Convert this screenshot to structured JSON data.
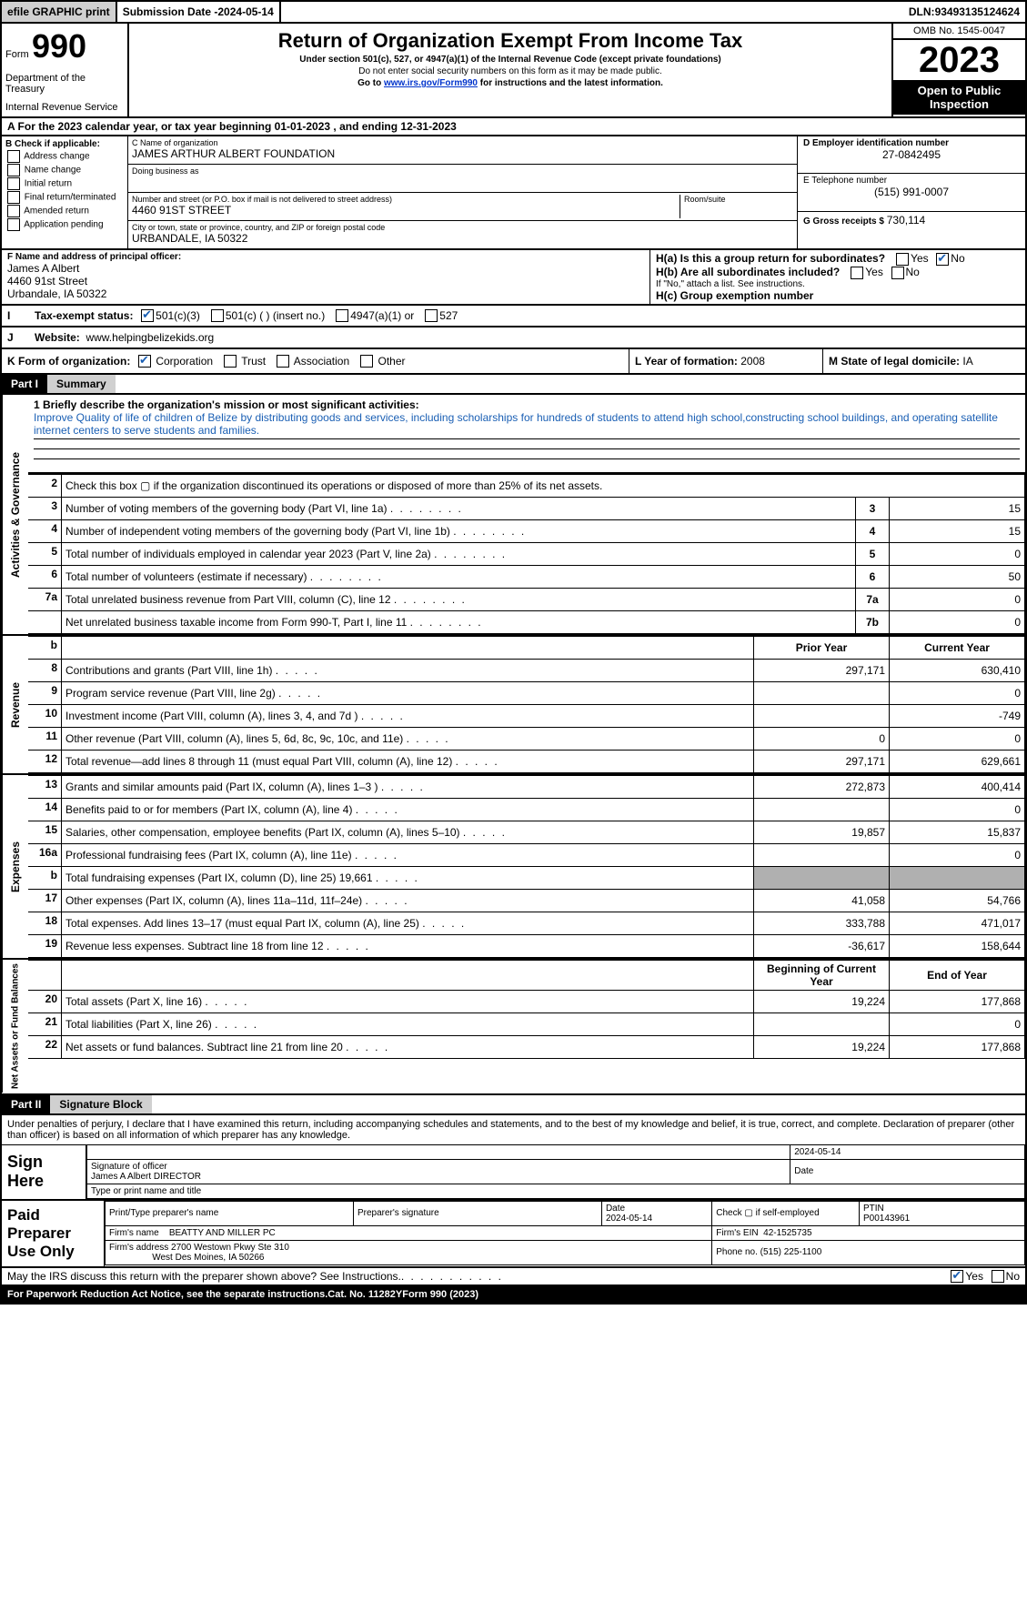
{
  "topbar": {
    "efile": "efile GRAPHIC print",
    "submission_label": "Submission Date - ",
    "submission_date": "2024-05-14",
    "dln_label": "DLN: ",
    "dln": "93493135124624"
  },
  "header": {
    "form_word": "Form",
    "form_number": "990",
    "dept": "Department of the Treasury",
    "irs": "Internal Revenue Service",
    "title": "Return of Organization Exempt From Income Tax",
    "subtitle": "Under section 501(c), 527, or 4947(a)(1) of the Internal Revenue Code (except private foundations)",
    "note1": "Do not enter social security numbers on this form as it may be made public.",
    "note2_prefix": "Go to ",
    "note2_link": "www.irs.gov/Form990",
    "note2_suffix": " for instructions and the latest information.",
    "omb": "OMB No. 1545-0047",
    "year": "2023",
    "inspect1": "Open to Public",
    "inspect2": "Inspection"
  },
  "cy": {
    "label_a": "A For the 2023 calendar year, or tax year beginning ",
    "begin": "01-01-2023",
    "mid": " , and ending ",
    "end": "12-31-2023"
  },
  "entity": {
    "b_label": "B Check if applicable:",
    "b_opts": [
      "Address change",
      "Name change",
      "Initial return",
      "Final return/terminated",
      "Amended return",
      "Application pending"
    ],
    "c_name_lbl": "C Name of organization",
    "c_name": "JAMES ARTHUR ALBERT FOUNDATION",
    "dba_lbl": "Doing business as",
    "street_lbl": "Number and street (or P.O. box if mail is not delivered to street address)",
    "street": "4460 91ST STREET",
    "room_lbl": "Room/suite",
    "city_lbl": "City or town, state or province, country, and ZIP or foreign postal code",
    "city": "URBANDALE, IA  50322",
    "d_lbl": "D Employer identification number",
    "d_val": "27-0842495",
    "e_lbl": "E Telephone number",
    "e_val": "(515) 991-0007",
    "g_lbl": "G Gross receipts $ ",
    "g_val": "730,114"
  },
  "fh": {
    "f_lbl": "F Name and address of principal officer:",
    "f_name": "James A Albert",
    "f_street": "4460 91st Street",
    "f_city": "Urbandale, IA  50322",
    "i_lbl": "Tax-exempt status:",
    "i_501c3": "501(c)(3)",
    "i_501c": "501(c) (  ) (insert no.)",
    "i_4947": "4947(a)(1) or",
    "i_527": "527",
    "j_lbl": "Website:",
    "j_val": "www.helpingbelizekids.org",
    "ha_lbl": "H(a) Is this a group return for subordinates?",
    "hb_lbl": "H(b) Are all subordinates included?",
    "hb_note": "If \"No,\" attach a list. See instructions.",
    "hc_lbl": "H(c) Group exemption number",
    "yes": "Yes",
    "no": "No"
  },
  "klm": {
    "k_lbl": "K Form of organization:",
    "k_opts": [
      "Corporation",
      "Trust",
      "Association",
      "Other"
    ],
    "l_lbl": "L Year of formation: ",
    "l_val": "2008",
    "m_lbl": "M State of legal domicile: ",
    "m_val": "IA"
  },
  "parts": {
    "p1_tag": "Part I",
    "p1_title": "Summary",
    "p2_tag": "Part II",
    "p2_title": "Signature Block"
  },
  "sidetabs": {
    "ag": "Activities & Governance",
    "rev": "Revenue",
    "exp": "Expenses",
    "na": "Net Assets or Fund Balances"
  },
  "mission": {
    "line1_lbl": "1  Briefly describe the organization's mission or most significant activities:",
    "text": "Improve Quality of life of children of Belize by distributing goods and services, including scholarships for hundreds of students to attend high school,constructing school buildings, and operating satellite internet centers to serve students and families."
  },
  "p1_lines_ag": [
    {
      "n": "2",
      "txt": "Check this box ▢ if the organization discontinued its operations or disposed of more than 25% of its net assets.",
      "box": "",
      "val": ""
    },
    {
      "n": "3",
      "txt": "Number of voting members of the governing body (Part VI, line 1a)",
      "box": "3",
      "val": "15"
    },
    {
      "n": "4",
      "txt": "Number of independent voting members of the governing body (Part VI, line 1b)",
      "box": "4",
      "val": "15"
    },
    {
      "n": "5",
      "txt": "Total number of individuals employed in calendar year 2023 (Part V, line 2a)",
      "box": "5",
      "val": "0"
    },
    {
      "n": "6",
      "txt": "Total number of volunteers (estimate if necessary)",
      "box": "6",
      "val": "50"
    },
    {
      "n": "7a",
      "txt": "Total unrelated business revenue from Part VIII, column (C), line 12",
      "box": "7a",
      "val": "0"
    },
    {
      "n": "",
      "txt": "Net unrelated business taxable income from Form 990-T, Part I, line 11",
      "box": "7b",
      "val": "0"
    }
  ],
  "col_hdrs": {
    "prior": "Prior Year",
    "current": "Current Year",
    "beg": "Beginning of Current Year",
    "end": "End of Year"
  },
  "p1_revenue": [
    {
      "n": "b",
      "txt": "",
      "prior": "",
      "cur": "",
      "hdr": true
    },
    {
      "n": "8",
      "txt": "Contributions and grants (Part VIII, line 1h)",
      "prior": "297,171",
      "cur": "630,410"
    },
    {
      "n": "9",
      "txt": "Program service revenue (Part VIII, line 2g)",
      "prior": "",
      "cur": "0"
    },
    {
      "n": "10",
      "txt": "Investment income (Part VIII, column (A), lines 3, 4, and 7d )",
      "prior": "",
      "cur": "-749"
    },
    {
      "n": "11",
      "txt": "Other revenue (Part VIII, column (A), lines 5, 6d, 8c, 9c, 10c, and 11e)",
      "prior": "0",
      "cur": "0"
    },
    {
      "n": "12",
      "txt": "Total revenue—add lines 8 through 11 (must equal Part VIII, column (A), line 12)",
      "prior": "297,171",
      "cur": "629,661"
    }
  ],
  "p1_expenses": [
    {
      "n": "13",
      "txt": "Grants and similar amounts paid (Part IX, column (A), lines 1–3 )",
      "prior": "272,873",
      "cur": "400,414"
    },
    {
      "n": "14",
      "txt": "Benefits paid to or for members (Part IX, column (A), line 4)",
      "prior": "",
      "cur": "0"
    },
    {
      "n": "15",
      "txt": "Salaries, other compensation, employee benefits (Part IX, column (A), lines 5–10)",
      "prior": "19,857",
      "cur": "15,837"
    },
    {
      "n": "16a",
      "txt": "Professional fundraising fees (Part IX, column (A), line 11e)",
      "prior": "",
      "cur": "0"
    },
    {
      "n": "b",
      "txt": "Total fundraising expenses (Part IX, column (D), line 25) 19,661",
      "prior": "SHADE",
      "cur": "SHADE"
    },
    {
      "n": "17",
      "txt": "Other expenses (Part IX, column (A), lines 11a–11d, 11f–24e)",
      "prior": "41,058",
      "cur": "54,766"
    },
    {
      "n": "18",
      "txt": "Total expenses. Add lines 13–17 (must equal Part IX, column (A), line 25)",
      "prior": "333,788",
      "cur": "471,017"
    },
    {
      "n": "19",
      "txt": "Revenue less expenses. Subtract line 18 from line 12",
      "prior": "-36,617",
      "cur": "158,644"
    }
  ],
  "p1_netassets": [
    {
      "n": "",
      "txt": "",
      "prior": "",
      "cur": "",
      "hdr": true
    },
    {
      "n": "20",
      "txt": "Total assets (Part X, line 16)",
      "prior": "19,224",
      "cur": "177,868"
    },
    {
      "n": "21",
      "txt": "Total liabilities (Part X, line 26)",
      "prior": "",
      "cur": "0"
    },
    {
      "n": "22",
      "txt": "Net assets or fund balances. Subtract line 21 from line 20",
      "prior": "19,224",
      "cur": "177,868"
    }
  ],
  "sig": {
    "decl": "Under penalties of perjury, I declare that I have examined this return, including accompanying schedules and statements, and to the best of my knowledge and belief, it is true, correct, and complete. Declaration of preparer (other than officer) is based on all information of which preparer has any knowledge.",
    "sign_here": "Sign Here",
    "sig_officer_lbl": "Signature of officer",
    "sig_date": "2024-05-14",
    "date_lbl": "Date",
    "officer": "James A Albert  DIRECTOR",
    "officer_lbl": "Type or print name and title"
  },
  "paid": {
    "lbl": "Paid Preparer Use Only",
    "print_lbl": "Print/Type preparer's name",
    "prep_sig_lbl": "Preparer's signature",
    "date": "2024-05-14",
    "check_lbl": "Check ▢ if self-employed",
    "ptin_lbl": "PTIN",
    "ptin": "P00143961",
    "firm_name_lbl": "Firm's name",
    "firm_name": "BEATTY AND MILLER PC",
    "firm_ein_lbl": "Firm's EIN",
    "firm_ein": "42-1525735",
    "firm_addr_lbl": "Firm's address",
    "firm_addr1": "2700 Westown Pkwy Ste 310",
    "firm_addr2": "West Des Moines, IA  50266",
    "phone_lbl": "Phone no. ",
    "phone": "(515) 225-1100"
  },
  "footer": {
    "irs_discuss": "May the IRS discuss this return with the preparer shown above? See Instructions.",
    "paperwork": "For Paperwork Reduction Act Notice, see the separate instructions.",
    "cat": "Cat. No. 11282Y",
    "form": "Form 990 (2023)"
  },
  "colors": {
    "link": "#0033cc",
    "blue_text": "#1a5fb4",
    "shade": "#b0b0b0",
    "grey": "#d0d0d0"
  }
}
